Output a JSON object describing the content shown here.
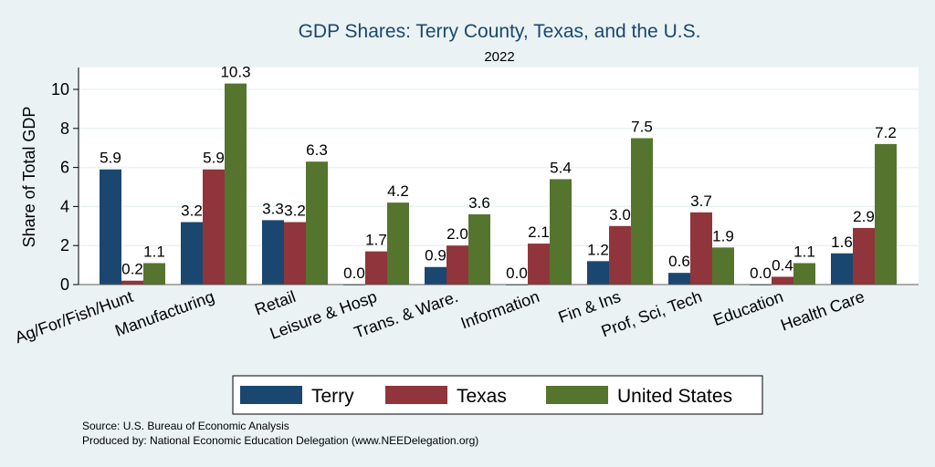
{
  "chart_data": {
    "type": "bar",
    "title": "GDP Shares: Terry County, Texas, and the U.S.",
    "subtitle": "2022",
    "xlabel": "",
    "ylabel": "Share of Total GDP",
    "ylim": [
      0,
      11.1
    ],
    "yticks": [
      0,
      2,
      4,
      6,
      8,
      10
    ],
    "grid": true,
    "legend_position": "bottom",
    "categories": [
      "Ag/For/Fish/Hunt",
      "Manufacturing",
      "Retail",
      "Leisure & Hosp",
      "Trans. & Ware.",
      "Information",
      "Fin & Ins",
      "Prof, Sci, Tech",
      "Education",
      "Health Care"
    ],
    "series": [
      {
        "name": "Terry",
        "color": "#1a476f",
        "values": [
          5.9,
          3.2,
          3.3,
          0.0,
          0.9,
          0.0,
          1.2,
          0.6,
          0.0,
          1.6
        ]
      },
      {
        "name": "Texas",
        "color": "#90353b",
        "values": [
          0.2,
          5.9,
          3.2,
          1.7,
          2.0,
          2.1,
          3.0,
          3.7,
          0.4,
          2.9
        ]
      },
      {
        "name": "United States",
        "color": "#55752f",
        "values": [
          1.1,
          10.3,
          6.3,
          4.2,
          3.6,
          5.4,
          7.5,
          1.9,
          1.1,
          7.2
        ]
      }
    ],
    "notes": [
      "Source: U.S. Bureau of Economic Analysis",
      "Produced by: National Economic Education Delegation (www.NEEDelegation.org)"
    ]
  }
}
